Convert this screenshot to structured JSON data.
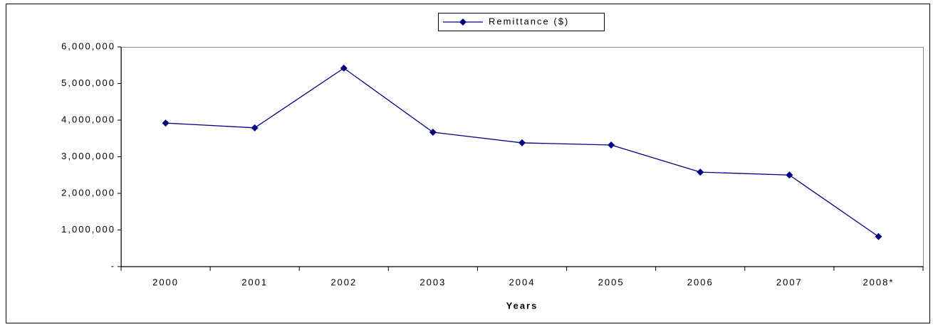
{
  "chart_data": {
    "type": "line",
    "x_label": "Years",
    "categories": [
      "2000",
      "2001",
      "2002",
      "2003",
      "2004",
      "2005",
      "2006",
      "2007",
      "2008*"
    ],
    "series": [
      {
        "name": "Remittance ($)",
        "color": "#000080",
        "values": [
          3920000,
          3790000,
          5420000,
          3670000,
          3380000,
          3320000,
          2580000,
          2500000,
          820000
        ]
      }
    ],
    "ylim": [
      0,
      6000000
    ],
    "yticks": [
      {
        "value": 0,
        "label": "-"
      },
      {
        "value": 1000000,
        "label": "1,000,000"
      },
      {
        "value": 2000000,
        "label": "2,000,000"
      },
      {
        "value": 3000000,
        "label": "3,000,000"
      },
      {
        "value": 4000000,
        "label": "4,000,000"
      },
      {
        "value": 5000000,
        "label": "5,000,000"
      },
      {
        "value": 6000000,
        "label": "6,000,000"
      }
    ],
    "grid": false,
    "legend": "top"
  }
}
